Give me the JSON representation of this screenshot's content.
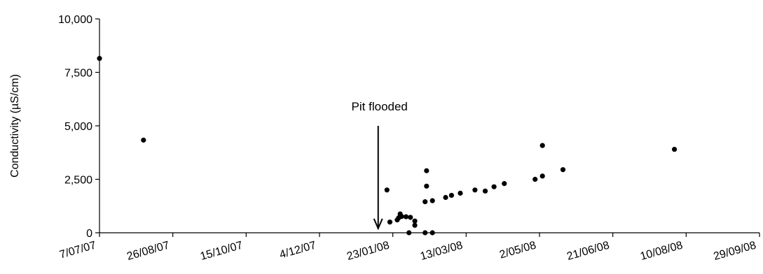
{
  "chart_data": {
    "type": "scatter",
    "ylabel": "Conductivity  (µS/cm)",
    "xlabel": "",
    "ylim": [
      0,
      10000
    ],
    "xlim": [
      "2007-07-07",
      "2008-09-29"
    ],
    "yticks": [
      0,
      2500,
      5000,
      7500,
      10000
    ],
    "ytick_labels": [
      "0",
      "2,500",
      "5,000",
      "7,500",
      "10,000"
    ],
    "xticks": [
      "2007-07-07",
      "2007-08-26",
      "2007-10-15",
      "2007-12-04",
      "2008-01-23",
      "2008-03-13",
      "2008-05-02",
      "2008-06-21",
      "2008-08-10",
      "2008-09-29"
    ],
    "xtick_labels": [
      "7/07/07",
      "26/08/07",
      "15/10/07",
      "4/12/07",
      "23/01/08",
      "13/03/08",
      "2/05/08",
      "21/06/08",
      "10/08/08",
      "29/09/08"
    ],
    "grid": false,
    "color": "#000000",
    "annotation": {
      "text": "Pit flooded",
      "x": "2008-01-13",
      "y_top": 5000,
      "y_bottom": 200
    },
    "points": [
      {
        "x": "2007-07-07",
        "y": 8150
      },
      {
        "x": "2007-08-06",
        "y": 4330
      },
      {
        "x": "2008-01-19",
        "y": 2000
      },
      {
        "x": "2008-01-21",
        "y": 500
      },
      {
        "x": "2008-01-26",
        "y": 600
      },
      {
        "x": "2008-01-27",
        "y": 700
      },
      {
        "x": "2008-01-28",
        "y": 880
      },
      {
        "x": "2008-01-29",
        "y": 760
      },
      {
        "x": "2008-02-01",
        "y": 750
      },
      {
        "x": "2008-02-03",
        "y": 0
      },
      {
        "x": "2008-02-04",
        "y": 720
      },
      {
        "x": "2008-02-07",
        "y": 350
      },
      {
        "x": "2008-02-07",
        "y": 550
      },
      {
        "x": "2008-02-14",
        "y": 1450
      },
      {
        "x": "2008-02-14",
        "y": 0
      },
      {
        "x": "2008-02-15",
        "y": 2900
      },
      {
        "x": "2008-02-15",
        "y": 2180
      },
      {
        "x": "2008-02-19",
        "y": 1500
      },
      {
        "x": "2008-02-19",
        "y": 0
      },
      {
        "x": "2008-02-28",
        "y": 1650
      },
      {
        "x": "2008-03-03",
        "y": 1750
      },
      {
        "x": "2008-03-09",
        "y": 1850
      },
      {
        "x": "2008-03-19",
        "y": 2000
      },
      {
        "x": "2008-03-26",
        "y": 1950
      },
      {
        "x": "2008-04-01",
        "y": 2150
      },
      {
        "x": "2008-04-08",
        "y": 2300
      },
      {
        "x": "2008-04-29",
        "y": 2500
      },
      {
        "x": "2008-05-04",
        "y": 2650
      },
      {
        "x": "2008-05-04",
        "y": 4080
      },
      {
        "x": "2008-05-18",
        "y": 2950
      },
      {
        "x": "2008-08-02",
        "y": 3900
      }
    ]
  }
}
